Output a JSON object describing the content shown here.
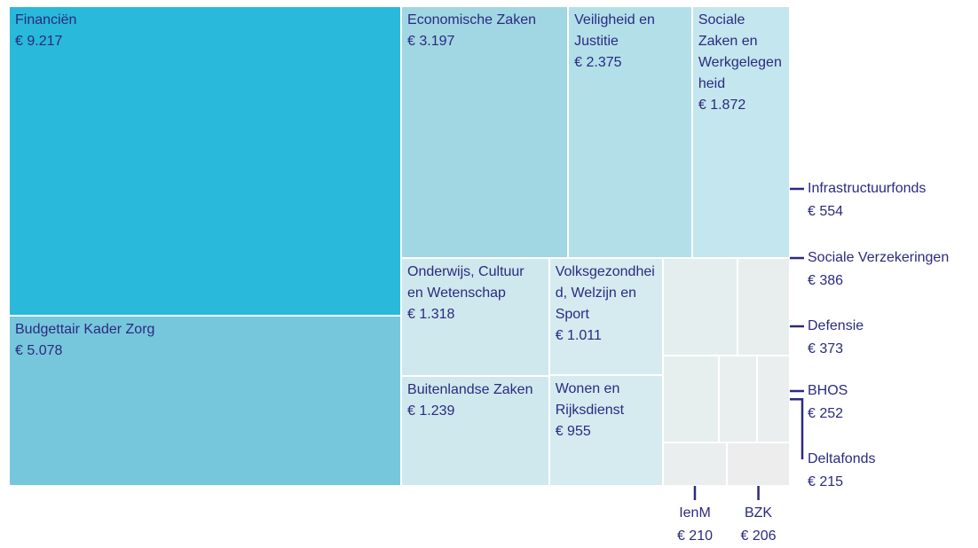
{
  "chart_data": {
    "type": "treemap",
    "categories": [
      "Financiën",
      "Budgettair Kader Zorg",
      "Economische Zaken",
      "Veiligheid en Justitie",
      "Sociale Zaken en Werkgelegenheid",
      "Onderwijs, Cultuur en Wetenschap",
      "Volksgezondheid, Welzijn en Sport",
      "Buitenlandse Zaken",
      "Wonen en Rijksdienst",
      "Infrastructuurfonds",
      "Sociale Verzekeringen",
      "Defensie",
      "BHOS",
      "Deltafonds",
      "IenM",
      "BZK"
    ],
    "values": [
      9217,
      5078,
      3197,
      2375,
      1872,
      1318,
      1011,
      1239,
      955,
      554,
      386,
      373,
      252,
      215,
      210,
      206
    ],
    "value_labels": [
      "€ 9.217",
      "€ 5.078",
      "€ 3.197",
      "€ 2.375",
      "€ 1.872",
      "€ 1.318",
      "€ 1.011",
      "€ 1.239",
      "€ 955",
      "€ 554",
      "€ 386",
      "€ 373",
      "€ 252",
      "€ 215",
      "€ 210",
      "€ 206"
    ],
    "colors": [
      "#29b9da",
      "#77c7dc",
      "#a1d6e3",
      "#b3dfe9",
      "#c4e6ee",
      "#cfe8ee",
      "#d5ebf0",
      "#cfe8ee",
      "#d5ebf0",
      "#e4eeef",
      "#e8eeee",
      "#e6eeee",
      "#e9eeee",
      "#ebeeee",
      "#eaeeee",
      "#ededed"
    ]
  }
}
